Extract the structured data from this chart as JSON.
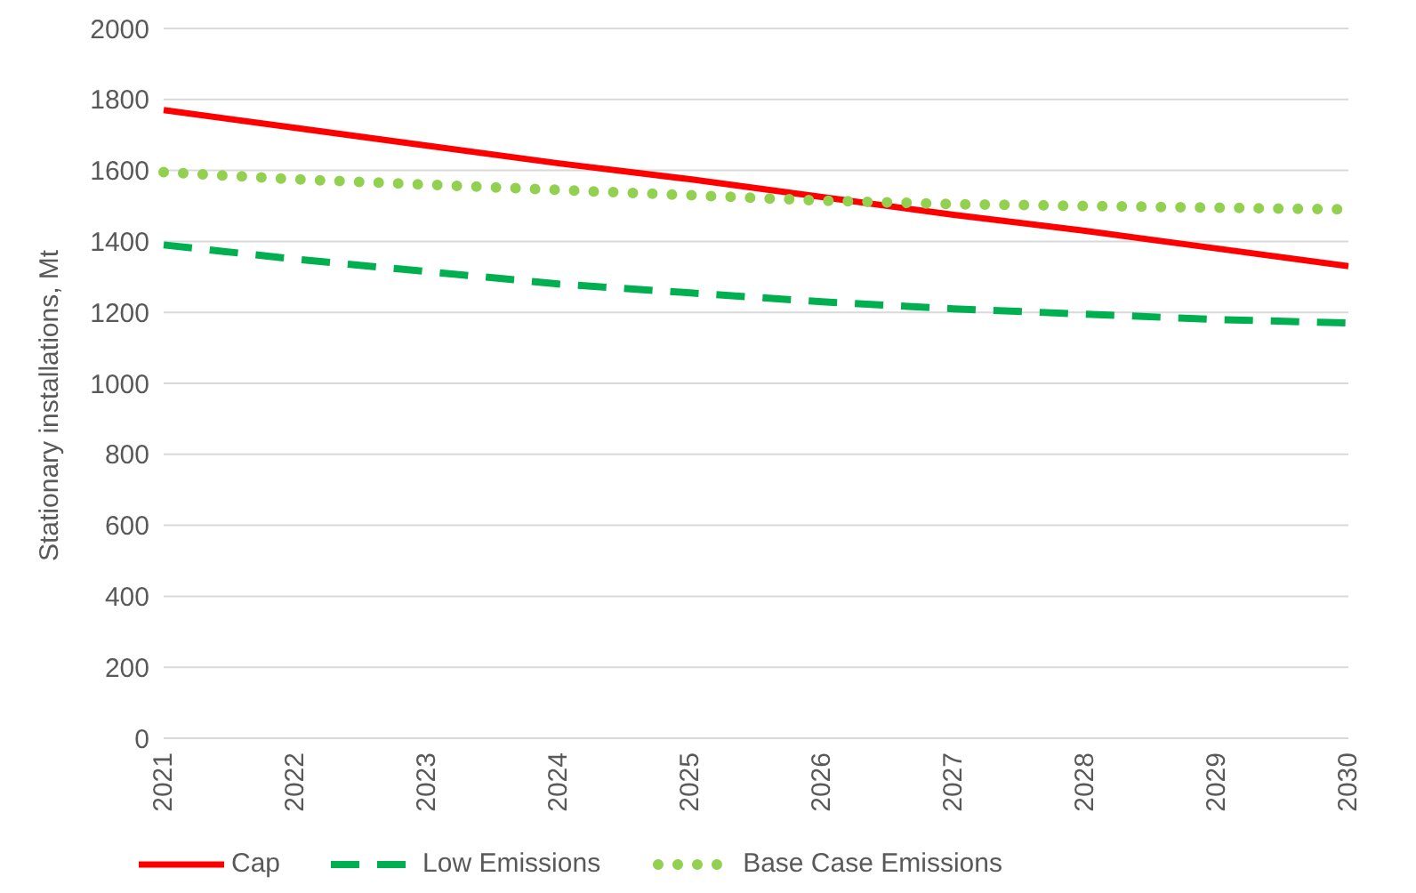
{
  "chart_data": {
    "type": "line",
    "ylabel": "Stationary installations, Mt",
    "categories": [
      "2021",
      "2022",
      "2023",
      "2024",
      "2025",
      "2026",
      "2027",
      "2028",
      "2029",
      "2030"
    ],
    "series": [
      {
        "name": "Cap",
        "color": "#ff0000",
        "line_style": "solid",
        "values": [
          1770,
          1720,
          1670,
          1620,
          1575,
          1525,
          1475,
          1430,
          1380,
          1330
        ]
      },
      {
        "name": "Low Emissions",
        "color": "#00b050",
        "line_style": "dashed",
        "values": [
          1390,
          1350,
          1315,
          1280,
          1255,
          1230,
          1210,
          1195,
          1180,
          1170
        ]
      },
      {
        "name": "Base Case Emissions",
        "color": "#92d050",
        "line_style": "dotted",
        "values": [
          1595,
          1575,
          1560,
          1545,
          1530,
          1515,
          1505,
          1500,
          1495,
          1490
        ]
      }
    ],
    "ylim": [
      0,
      2000
    ],
    "yticks": [
      0,
      200,
      400,
      600,
      800,
      1000,
      1200,
      1400,
      1600,
      1800,
      2000
    ],
    "grid": "y",
    "legend": "bottom",
    "marker": "none"
  }
}
